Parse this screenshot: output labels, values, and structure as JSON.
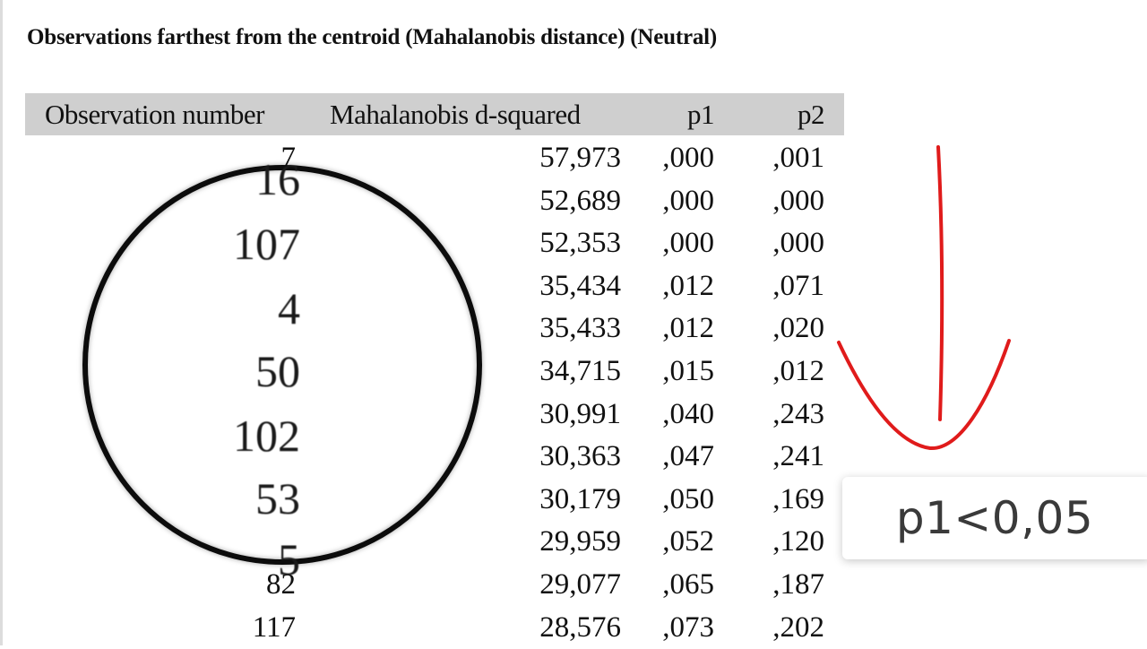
{
  "title": "Observations farthest from the centroid (Mahalanobis distance) (Neutral)",
  "table": {
    "headers": [
      "Observation number",
      "Mahalanobis d-squared",
      "p1",
      "p2"
    ],
    "rows": [
      {
        "obs": "7",
        "d2": "57,973",
        "p1": ",000",
        "p2": ",001"
      },
      {
        "obs": "",
        "d2": "52,689",
        "p1": ",000",
        "p2": ",000"
      },
      {
        "obs": "",
        "d2": "52,353",
        "p1": ",000",
        "p2": ",000"
      },
      {
        "obs": "",
        "d2": "35,434",
        "p1": ",012",
        "p2": ",071"
      },
      {
        "obs": "",
        "d2": "35,433",
        "p1": ",012",
        "p2": ",020"
      },
      {
        "obs": "",
        "d2": "34,715",
        "p1": ",015",
        "p2": ",012"
      },
      {
        "obs": "",
        "d2": "30,991",
        "p1": ",040",
        "p2": ",243"
      },
      {
        "obs": "",
        "d2": "30,363",
        "p1": ",047",
        "p2": ",241"
      },
      {
        "obs": "",
        "d2": "30,179",
        "p1": ",050",
        "p2": ",169"
      },
      {
        "obs": "",
        "d2": "29,959",
        "p1": ",052",
        "p2": ",120"
      },
      {
        "obs": "82",
        "d2": "29,077",
        "p1": ",065",
        "p2": ",187"
      },
      {
        "obs": "117",
        "d2": "28,576",
        "p1": ",073",
        "p2": ",202"
      }
    ]
  },
  "magnifier": {
    "values": [
      "16",
      "107",
      "4",
      "50",
      "102",
      "53",
      "5"
    ]
  },
  "annotation": {
    "label": "p1<0,05",
    "arrow_color": "#e01b1b"
  }
}
